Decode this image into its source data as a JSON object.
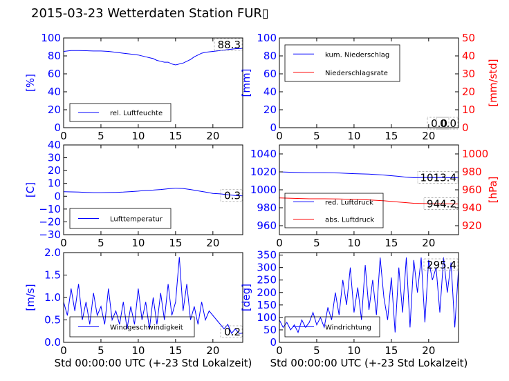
{
  "title": "2015-03-23 Wetterdaten Station FUR▯",
  "colors": {
    "blue": "#0000ff",
    "red": "#ff0000",
    "black": "#000000"
  },
  "chart_data": [
    {
      "id": "humidity",
      "type": "line",
      "xlabel": "",
      "ylabel": "[%]",
      "xlim": [
        0,
        24
      ],
      "ylim": [
        0,
        100
      ],
      "xticks": [
        "0",
        "5",
        "10",
        "15",
        "20"
      ],
      "yticks": [
        "0",
        "20",
        "40",
        "60",
        "80",
        "100"
      ],
      "current_value": "88.3",
      "series": [
        {
          "name": "rel. Luftfeuchte",
          "color": "#0000ff",
          "x": [
            0,
            0.5,
            1,
            2,
            3,
            4,
            5,
            6,
            7,
            8,
            9,
            10,
            11,
            11.5,
            12,
            12.5,
            13,
            13.5,
            14,
            14.5,
            15,
            15.5,
            16,
            16.5,
            17,
            17.5,
            18,
            18.5,
            19,
            20,
            21,
            22,
            23,
            24
          ],
          "y": [
            85,
            85.5,
            86,
            86,
            85.8,
            85.5,
            85.5,
            85,
            84,
            83,
            82,
            81,
            79,
            78,
            77,
            75,
            74,
            73,
            73,
            71,
            70,
            71,
            72,
            74,
            76,
            79,
            81,
            83,
            84,
            85,
            86,
            87,
            88,
            88.3
          ]
        }
      ]
    },
    {
      "id": "precipitation",
      "type": "line",
      "xlabel": "",
      "ylabel": "[mm]",
      "ylabel_right": "[mm/std]",
      "xlim": [
        0,
        24
      ],
      "ylim": [
        0,
        100
      ],
      "ylim_right": [
        0,
        50
      ],
      "xticks": [
        "0",
        "5",
        "10",
        "15",
        "20"
      ],
      "yticks": [
        "0",
        "20",
        "40",
        "60",
        "80",
        "100"
      ],
      "yticks_right": [
        "0",
        "10",
        "20",
        "30",
        "40",
        "50"
      ],
      "current_value": "0.0",
      "current_value_right": "0.0",
      "series": [
        {
          "name": "kum. Niederschlag",
          "color": "#0000ff",
          "x": [
            0,
            24
          ],
          "y": [
            0,
            0
          ]
        },
        {
          "name": "Niederschlagsrate",
          "color": "#ff0000",
          "x": [
            0,
            24
          ],
          "y": [
            0,
            0
          ]
        }
      ]
    },
    {
      "id": "temperature",
      "type": "line",
      "xlabel": "",
      "ylabel": "[C]",
      "xlim": [
        0,
        24
      ],
      "ylim": [
        -30,
        40
      ],
      "xticks": [
        "0",
        "5",
        "10",
        "15",
        "20"
      ],
      "yticks": [
        "−30",
        "−20",
        "−10",
        "0",
        "10",
        "20",
        "30",
        "40"
      ],
      "current_value": "0.3",
      "series": [
        {
          "name": "Lufttemperatur",
          "color": "#0000ff",
          "x": [
            0,
            1,
            2,
            3,
            4,
            5,
            6,
            7,
            8,
            9,
            10,
            11,
            12,
            13,
            14,
            15,
            16,
            17,
            18,
            19,
            20,
            21,
            22,
            23,
            24
          ],
          "y": [
            3.5,
            3.4,
            3.2,
            3,
            2.8,
            2.8,
            2.9,
            3,
            3.2,
            3.6,
            4,
            4.5,
            4.8,
            5.2,
            5.8,
            6.3,
            6,
            5.2,
            4.2,
            3.2,
            2.2,
            1.8,
            1.2,
            0.6,
            0.3
          ]
        }
      ]
    },
    {
      "id": "pressure",
      "type": "line",
      "xlabel": "",
      "ylabel": "",
      "ylabel_right": "[hPa]",
      "xlim": [
        0,
        24
      ],
      "ylim": [
        950,
        1050
      ],
      "ylim_right": [
        910,
        1010
      ],
      "xticks": [
        "0",
        "5",
        "10",
        "15",
        "20"
      ],
      "yticks": [
        "960",
        "980",
        "1000",
        "1020",
        "1040"
      ],
      "yticks_right": [
        "920",
        "940",
        "960",
        "980",
        "1000"
      ],
      "current_value": "1013.4",
      "current_value_right": "944.2",
      "series": [
        {
          "name": "red. Luftdruck",
          "color": "#0000ff",
          "x": [
            0,
            2,
            4,
            6,
            8,
            10,
            12,
            14,
            16,
            17,
            18,
            20,
            22,
            24
          ],
          "y": [
            1020,
            1019.5,
            1019,
            1019,
            1018.8,
            1018,
            1017.5,
            1016.5,
            1015,
            1014,
            1013.5,
            1013.8,
            1013.6,
            1013.4
          ]
        },
        {
          "name": "abs. Luftdruck",
          "color": "#ff0000",
          "x": [
            0,
            2,
            4,
            6,
            8,
            10,
            12,
            14,
            16,
            18,
            20,
            22,
            24
          ],
          "y": [
            951,
            950.5,
            950,
            950,
            949.8,
            949.3,
            948.8,
            947.8,
            946.3,
            945,
            944.6,
            944.4,
            944.2
          ]
        }
      ]
    },
    {
      "id": "windspeed",
      "type": "line",
      "xlabel": "Std 00:00:00 UTC (+-23 Std Lokalzeit)",
      "ylabel": "[m/s]",
      "xlim": [
        0,
        24
      ],
      "ylim": [
        0,
        2
      ],
      "xticks": [
        "0",
        "5",
        "10",
        "15",
        "20"
      ],
      "yticks": [
        "0.0",
        "0.5",
        "1.0",
        "1.5",
        "2.0"
      ],
      "current_value": "0.2",
      "series": [
        {
          "name": "Windgeschwindigkeit",
          "color": "#0000ff",
          "x": [
            0,
            0.5,
            1,
            1.5,
            2,
            2.5,
            3,
            3.5,
            4,
            4.5,
            5,
            5.5,
            6,
            6.5,
            7,
            7.5,
            8,
            8.5,
            9,
            9.5,
            10,
            10.5,
            11,
            11.5,
            12,
            12.5,
            13,
            13.5,
            14,
            14.5,
            15,
            15.5,
            16,
            16.5,
            17,
            17.5,
            18,
            18.5,
            19,
            19.5,
            20,
            20.5,
            21,
            21.5,
            22,
            22.5,
            23,
            23.5,
            24
          ],
          "y": [
            0.9,
            0.6,
            1.2,
            0.7,
            1.3,
            0.5,
            0.9,
            0.4,
            1.1,
            0.6,
            0.8,
            0.4,
            1.2,
            0.5,
            0.7,
            0.4,
            0.9,
            0.3,
            0.8,
            0.4,
            1.2,
            0.5,
            0.9,
            0.3,
            1.0,
            0.4,
            1.1,
            0.5,
            1.3,
            0.6,
            0.9,
            1.9,
            0.7,
            1.3,
            0.5,
            0.8,
            0.4,
            0.9,
            0.5,
            0.7,
            0.6,
            0.5,
            0.4,
            0.3,
            0.4,
            0.2,
            0.3,
            0.2,
            0.2
          ]
        }
      ]
    },
    {
      "id": "winddirection",
      "type": "line",
      "xlabel": "Std 00:00:00 UTC (+-23 Std Lokalzeit)",
      "ylabel": "[deg]",
      "xlim": [
        0,
        24
      ],
      "ylim": [
        0,
        360
      ],
      "xticks": [
        "0",
        "5",
        "10",
        "15",
        "20"
      ],
      "yticks": [
        "0",
        "50",
        "100",
        "150",
        "200",
        "250",
        "300",
        "350"
      ],
      "current_value": "295.4",
      "series": [
        {
          "name": "Windrichtung",
          "color": "#0000ff",
          "x": [
            0,
            0.5,
            1,
            1.5,
            2,
            2.5,
            3,
            3.5,
            4,
            4.5,
            5,
            5.5,
            6,
            6.5,
            7,
            7.5,
            8,
            8.5,
            9,
            9.5,
            10,
            10.5,
            11,
            11.5,
            12,
            12.5,
            13,
            13.5,
            14,
            14.5,
            15,
            15.5,
            16,
            16.5,
            17,
            17.5,
            18,
            18.5,
            19,
            19.5,
            20,
            20.5,
            21,
            21.5,
            22,
            22.5,
            23,
            23.5,
            24
          ],
          "y": [
            90,
            60,
            80,
            50,
            70,
            40,
            90,
            60,
            80,
            120,
            70,
            100,
            60,
            140,
            90,
            200,
            110,
            250,
            150,
            300,
            120,
            220,
            90,
            310,
            130,
            250,
            110,
            340,
            180,
            90,
            260,
            40,
            300,
            120,
            340,
            60,
            330,
            200,
            340,
            80,
            330,
            250,
            300,
            120,
            340,
            200,
            320,
            60,
            295
          ]
        }
      ]
    }
  ]
}
